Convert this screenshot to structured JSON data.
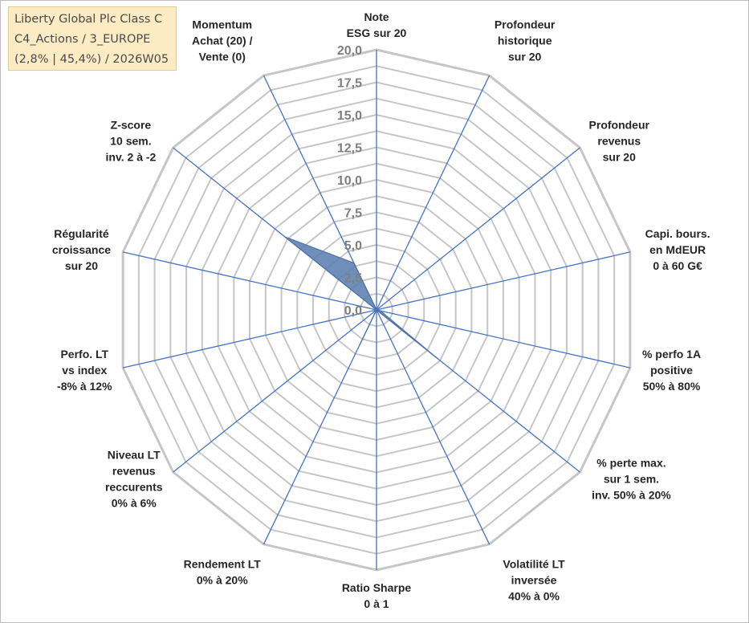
{
  "title_box": {
    "line1": "Liberty Global Plc Class C",
    "line2": "C4_Actions / 3_EUROPE",
    "line3": "(2,8% | 45,4%) / 2026W05"
  },
  "colors": {
    "grid": "#c6c6c6",
    "spoke": "#4472c4",
    "fill": "#5b7fb0",
    "tick_text": "#7f7f7f",
    "label_text": "#262626",
    "title_bg": "#fdebc4"
  },
  "chart_data": {
    "type": "radar",
    "ylim": [
      0,
      20
    ],
    "grid_step": 1.25,
    "tick_labels": [
      "0,0",
      "2,5",
      "5,0",
      "7,5",
      "10,0",
      "12,5",
      "15,0",
      "17,5",
      "20,0"
    ],
    "axes": [
      {
        "lines": [
          "Note",
          "ESG sur 20"
        ]
      },
      {
        "lines": [
          "Profondeur",
          "historique",
          "sur 20"
        ]
      },
      {
        "lines": [
          "Profondeur",
          "revenus",
          "sur 20"
        ]
      },
      {
        "lines": [
          "Capi. bours.",
          "en MdEUR",
          "0 à 60 G€"
        ]
      },
      {
        "lines": [
          "% perfo 1A",
          "positive",
          "50% à 80%"
        ]
      },
      {
        "lines": [
          "% perte max.",
          "sur 1 sem.",
          "inv. 50% à 20%"
        ]
      },
      {
        "lines": [
          "Volatilité LT",
          "inversée",
          "40% à 0%"
        ]
      },
      {
        "lines": [
          "Ratio Sharpe",
          "0 à 1"
        ]
      },
      {
        "lines": [
          "Rendement LT",
          "0% à 20%"
        ]
      },
      {
        "lines": [
          "Niveau LT",
          "revenus",
          "reccurents",
          "0% à 6%"
        ]
      },
      {
        "lines": [
          "Perfo. LT",
          "vs index",
          "-8% à 12%"
        ]
      },
      {
        "lines": [
          "Régularité",
          "croissance",
          "sur 20"
        ]
      },
      {
        "lines": [
          "Z-score",
          "10 sem.",
          "inv. 2 à -2"
        ]
      },
      {
        "lines": [
          "Momentum",
          "Achat (20) /",
          "Vente (0)"
        ]
      }
    ],
    "values": [
      0,
      0,
      0,
      0,
      0.3,
      6.0,
      0,
      0,
      3.0,
      0,
      0,
      0,
      9.0,
      4.0
    ],
    "legend": "none",
    "grid": true
  }
}
